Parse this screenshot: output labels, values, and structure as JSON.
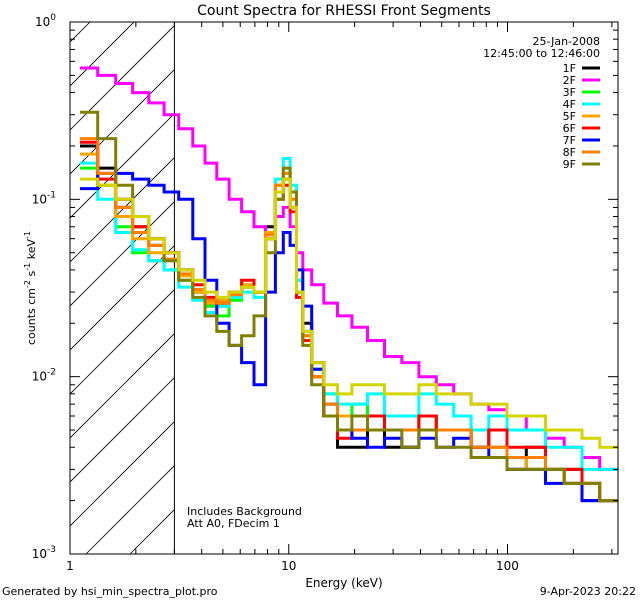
{
  "chart_data": {
    "type": "line",
    "title": "Count Spectra for RHESSI Front Segments",
    "xlabel": "Energy (keV)",
    "ylabel": {
      "base": "counts cm",
      "exp1": "-2",
      "mid": " s",
      "exp2": "-1",
      "mid2": " keV",
      "exp3": "-1"
    },
    "xscale": "log",
    "yscale": "log",
    "xlim": [
      1.0,
      320.0
    ],
    "ylim": [
      0.001,
      1.0
    ],
    "x_ticks": [
      {
        "value": 1,
        "label": "1"
      },
      {
        "value": 10,
        "label": "10"
      },
      {
        "value": 100,
        "label": "100"
      }
    ],
    "y_ticks": [
      {
        "value": 1,
        "base": "10",
        "exp": "0"
      },
      {
        "value": 0.1,
        "base": "10",
        "exp": "-1"
      },
      {
        "value": 0.01,
        "base": "10",
        "exp": "-2"
      },
      {
        "value": 0.001,
        "base": "10",
        "exp": "-3"
      }
    ],
    "hatched_region": {
      "x_min": 1.0,
      "x_max": 3.0
    },
    "date": "25-Jan-2008",
    "time_range": "12:45:00 to 12:46:00",
    "annotation_line1": "Includes Background",
    "annotation_line2": "Att A0, FDecim 1",
    "footer_left": "Generated by hsi_min_spectra_plot.pro",
    "footer_right": "9-Apr-2023 20:22",
    "energy_bins": [
      1.22,
      1.47,
      1.78,
      2.1,
      2.5,
      2.9,
      3.4,
      3.9,
      4.4,
      5.0,
      5.7,
      6.5,
      7.4,
      8.3,
      9.1,
      9.8,
      10.5,
      11.2,
      12.0,
      13.5,
      15.5,
      18.0,
      21.0,
      25.0,
      30.0,
      36.0,
      43.0,
      52.0,
      62.0,
      75.0,
      90.0,
      110.0,
      135.0,
      165.0,
      200.0,
      240.0,
      290.0
    ],
    "series": [
      {
        "name": "1F",
        "color": "#000000",
        "values": [
          0.2,
          0.15,
          0.1,
          0.07,
          0.055,
          0.05,
          0.04,
          0.03,
          0.025,
          0.025,
          0.03,
          0.032,
          0.03,
          0.07,
          0.11,
          0.13,
          0.09,
          0.03,
          0.02,
          0.012,
          0.006,
          0.004,
          0.004,
          0.005,
          0.004,
          0.004,
          0.006,
          0.005,
          0.005,
          0.004,
          0.005,
          0.003,
          0.004,
          0.003,
          0.003,
          0.002,
          0.002
        ]
      },
      {
        "name": "2F",
        "color": "#ff00ff",
        "values": [
          0.55,
          0.5,
          0.45,
          0.4,
          0.35,
          0.3,
          0.25,
          0.2,
          0.16,
          0.13,
          0.1,
          0.085,
          0.07,
          0.065,
          0.08,
          0.09,
          0.07,
          0.05,
          0.04,
          0.033,
          0.026,
          0.022,
          0.019,
          0.016,
          0.013,
          0.012,
          0.01,
          0.009,
          0.008,
          0.007,
          0.0065,
          0.006,
          0.005,
          0.0045,
          0.004,
          0.0035,
          0.003
        ]
      },
      {
        "name": "3F",
        "color": "#00ff00",
        "values": [
          0.15,
          0.12,
          0.07,
          0.05,
          0.045,
          0.04,
          0.035,
          0.03,
          0.025,
          0.022,
          0.027,
          0.033,
          0.03,
          0.06,
          0.11,
          0.14,
          0.1,
          0.03,
          0.018,
          0.011,
          0.008,
          0.006,
          0.007,
          0.006,
          0.005,
          0.005,
          0.006,
          0.005,
          0.005,
          0.004,
          0.004,
          0.0035,
          0.003,
          0.003,
          0.0025,
          0.0025,
          0.002
        ]
      },
      {
        "name": "4F",
        "color": "#00ffff",
        "values": [
          0.16,
          0.1,
          0.065,
          0.052,
          0.045,
          0.04,
          0.032,
          0.027,
          0.023,
          0.025,
          0.028,
          0.03,
          0.028,
          0.065,
          0.13,
          0.17,
          0.12,
          0.035,
          0.017,
          0.011,
          0.008,
          0.007,
          0.007,
          0.008,
          0.006,
          0.006,
          0.008,
          0.007,
          0.006,
          0.005,
          0.006,
          0.005,
          0.005,
          0.004,
          0.004,
          0.003,
          0.003
        ]
      },
      {
        "name": "5F",
        "color": "#ffa500",
        "values": [
          0.18,
          0.12,
          0.08,
          0.06,
          0.05,
          0.045,
          0.037,
          0.03,
          0.026,
          0.027,
          0.03,
          0.033,
          0.03,
          0.065,
          0.12,
          0.14,
          0.1,
          0.03,
          0.017,
          0.01,
          0.007,
          0.006,
          0.006,
          0.005,
          0.005,
          0.005,
          0.006,
          0.005,
          0.005,
          0.004,
          0.004,
          0.0035,
          0.003,
          0.003,
          0.0025,
          0.0025,
          0.002
        ]
      },
      {
        "name": "6F",
        "color": "#ff0000",
        "values": [
          0.21,
          0.13,
          0.09,
          0.07,
          0.06,
          0.05,
          0.04,
          0.033,
          0.028,
          0.026,
          0.03,
          0.035,
          0.03,
          0.06,
          0.1,
          0.12,
          0.085,
          0.028,
          0.016,
          0.01,
          0.006,
          0.0045,
          0.005,
          0.006,
          0.005,
          0.005,
          0.006,
          0.005,
          0.005,
          0.004,
          0.005,
          0.004,
          0.004,
          0.003,
          0.003,
          0.0025,
          0.002
        ]
      },
      {
        "name": "7F",
        "color": "#0000ff",
        "values": [
          0.115,
          0.14,
          0.14,
          0.13,
          0.12,
          0.11,
          0.1,
          0.06,
          0.035,
          0.02,
          0.015,
          0.012,
          0.009,
          0.03,
          0.05,
          0.065,
          0.055,
          0.04,
          0.025,
          0.011,
          0.007,
          0.005,
          0.0045,
          0.004,
          0.0045,
          0.004,
          0.0045,
          0.004,
          0.0045,
          0.004,
          0.0035,
          0.003,
          0.003,
          0.0025,
          0.0025,
          0.002,
          0.002
        ]
      },
      {
        "name": "8F",
        "color": "#ff8000",
        "values": [
          0.22,
          0.14,
          0.09,
          0.065,
          0.055,
          0.046,
          0.038,
          0.031,
          0.027,
          0.026,
          0.029,
          0.032,
          0.03,
          0.063,
          0.12,
          0.14,
          0.1,
          0.03,
          0.017,
          0.01,
          0.007,
          0.005,
          0.005,
          0.005,
          0.005,
          0.005,
          0.005,
          0.005,
          0.005,
          0.004,
          0.004,
          0.0035,
          0.0035,
          0.003,
          0.0025,
          0.0025,
          0.002
        ]
      },
      {
        "name": "9F",
        "color": "#808000",
        "values": [
          0.31,
          0.22,
          0.12,
          0.08,
          0.06,
          0.045,
          0.035,
          0.028,
          0.022,
          0.018,
          0.015,
          0.017,
          0.022,
          0.05,
          0.1,
          0.15,
          0.11,
          0.03,
          0.015,
          0.009,
          0.006,
          0.005,
          0.006,
          0.005,
          0.005,
          0.004,
          0.005,
          0.004,
          0.004,
          0.0035,
          0.0035,
          0.003,
          0.003,
          0.003,
          0.0025,
          0.0025,
          0.002
        ]
      },
      {
        "name": "",
        "color": "#d4d400",
        "values": [
          0.13,
          0.12,
          0.1,
          0.08,
          0.06,
          0.05,
          0.04,
          0.035,
          0.03,
          0.028,
          0.03,
          0.032,
          0.03,
          0.06,
          0.11,
          0.13,
          0.09,
          0.03,
          0.018,
          0.012,
          0.009,
          0.008,
          0.009,
          0.009,
          0.008,
          0.008,
          0.009,
          0.008,
          0.008,
          0.007,
          0.007,
          0.006,
          0.006,
          0.005,
          0.005,
          0.0045,
          0.004
        ]
      }
    ]
  }
}
